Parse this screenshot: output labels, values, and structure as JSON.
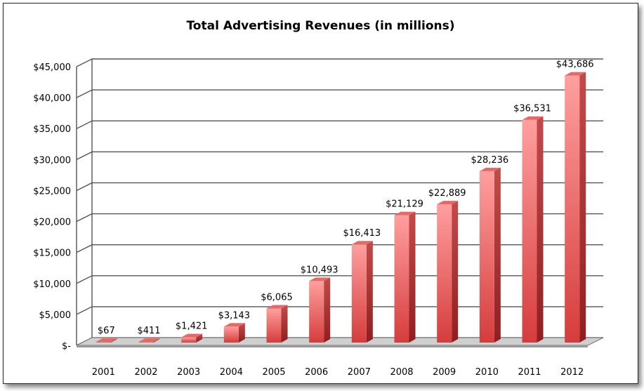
{
  "chart_data": {
    "type": "bar",
    "title": "Total Advertising Revenues (in millions)",
    "xlabel": "",
    "ylabel": "",
    "categories": [
      "2001",
      "2002",
      "2003",
      "2004",
      "2005",
      "2006",
      "2007",
      "2008",
      "2009",
      "2010",
      "2011",
      "2012"
    ],
    "values": [
      67,
      411,
      1421,
      3143,
      6065,
      10493,
      16413,
      21129,
      22889,
      28236,
      36531,
      43686
    ],
    "data_labels": [
      "$67",
      "$411",
      "$1,421",
      "$3,143",
      "$6,065",
      "$10,493",
      "$16,413",
      "$21,129",
      "$22,889",
      "$28,236",
      "$36,531",
      "$43,686"
    ],
    "ylim": [
      0,
      45000
    ],
    "yticks": [
      0,
      5000,
      10000,
      15000,
      20000,
      25000,
      30000,
      35000,
      40000,
      45000
    ],
    "ytick_labels": [
      "$-",
      "$5,000",
      "$10,000",
      "$15,000",
      "$20,000",
      "$25,000",
      "$30,000",
      "$35,000",
      "$40,000",
      "$45,000"
    ],
    "grid": true,
    "legend": "none",
    "style": "3d-column",
    "colors": {
      "bar_front_top": "#ff9c9c",
      "bar_front_bottom": "#d94040",
      "bar_side": "#a82828",
      "bar_top": "#e87070",
      "grid": "#555555",
      "floor": "#c8c8c8"
    }
  }
}
